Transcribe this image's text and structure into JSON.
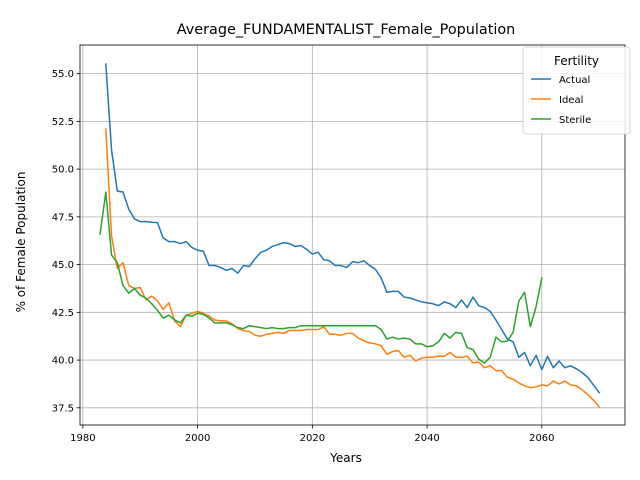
{
  "chart_data": {
    "type": "line",
    "title": "Average_FUNDAMENTALIST_Female_Population",
    "xlabel": "Years",
    "ylabel": "% of Female Population",
    "xlim": [
      1979.5,
      2074.5
    ],
    "ylim": [
      36.6,
      56.5
    ],
    "xticks": [
      1980,
      2000,
      2020,
      2040,
      2060
    ],
    "yticks": [
      37.5,
      40.0,
      42.5,
      45.0,
      47.5,
      50.0,
      52.5,
      55.0
    ],
    "grid": true,
    "legend": {
      "title": "Fertility",
      "placement": "top-right"
    },
    "series": [
      {
        "name": "Actual",
        "color": "#1f77b4",
        "x": [
          1984,
          1985,
          1986,
          1987,
          1988,
          1989,
          1990,
          1991,
          1992,
          1993,
          1994,
          1995,
          1996,
          1997,
          1998,
          1999,
          2000,
          2001,
          2002,
          2003,
          2004,
          2005,
          2006,
          2007,
          2008,
          2009,
          2010,
          2011,
          2012,
          2013,
          2014,
          2015,
          2016,
          2017,
          2018,
          2019,
          2020,
          2021,
          2022,
          2023,
          2024,
          2025,
          2026,
          2027,
          2028,
          2029,
          2030,
          2031,
          2032,
          2033,
          2034,
          2035,
          2036,
          2037,
          2038,
          2039,
          2040,
          2041,
          2042,
          2043,
          2044,
          2045,
          2046,
          2047,
          2048,
          2049,
          2050,
          2051,
          2052,
          2053,
          2054,
          2055,
          2056,
          2057,
          2058,
          2059,
          2060,
          2061,
          2062,
          2063,
          2064,
          2065,
          2066,
          2067,
          2068,
          2069,
          2070
        ],
        "y": [
          55.5,
          51.0,
          48.85,
          48.8,
          47.9,
          47.4,
          47.25,
          47.25,
          47.22,
          47.2,
          46.4,
          46.2,
          46.2,
          46.1,
          46.2,
          45.9,
          45.75,
          45.7,
          44.95,
          44.95,
          44.85,
          44.7,
          44.8,
          44.55,
          44.95,
          44.9,
          45.3,
          45.65,
          45.75,
          45.95,
          46.05,
          46.15,
          46.1,
          45.95,
          46.0,
          45.8,
          45.55,
          45.65,
          45.25,
          45.2,
          44.95,
          44.95,
          44.85,
          45.15,
          45.1,
          45.2,
          44.95,
          44.75,
          44.3,
          43.55,
          43.6,
          43.6,
          43.3,
          43.25,
          43.15,
          43.05,
          43.0,
          42.95,
          42.85,
          43.05,
          42.95,
          42.75,
          43.15,
          42.75,
          43.3,
          42.85,
          42.75,
          42.55,
          42.1,
          41.6,
          41.1,
          40.95,
          40.15,
          40.4,
          39.7,
          40.25,
          39.5,
          40.2,
          39.6,
          39.95,
          39.6,
          39.7,
          39.55,
          39.35,
          39.1,
          38.7,
          38.3
        ]
      },
      {
        "name": "Ideal",
        "color": "#ff7f0e",
        "x": [
          1984,
          1985,
          1986,
          1987,
          1988,
          1989,
          1990,
          1991,
          1992,
          1993,
          1994,
          1995,
          1996,
          1997,
          1998,
          1999,
          2000,
          2001,
          2002,
          2003,
          2004,
          2005,
          2006,
          2007,
          2008,
          2009,
          2010,
          2011,
          2012,
          2013,
          2014,
          2015,
          2016,
          2017,
          2018,
          2019,
          2020,
          2021,
          2022,
          2023,
          2024,
          2025,
          2026,
          2027,
          2028,
          2029,
          2030,
          2031,
          2032,
          2033,
          2034,
          2035,
          2036,
          2037,
          2038,
          2039,
          2040,
          2041,
          2042,
          2043,
          2044,
          2045,
          2046,
          2047,
          2048,
          2049,
          2050,
          2051,
          2052,
          2053,
          2054,
          2055,
          2056,
          2057,
          2058,
          2059,
          2060,
          2061,
          2062,
          2063,
          2064,
          2065,
          2066,
          2067,
          2068,
          2069,
          2070
        ],
        "y": [
          52.1,
          46.5,
          44.8,
          45.1,
          43.9,
          43.75,
          43.8,
          43.15,
          43.35,
          43.1,
          42.65,
          43.0,
          42.05,
          41.75,
          42.35,
          42.45,
          42.55,
          42.45,
          42.3,
          42.1,
          42.05,
          42.05,
          41.9,
          41.65,
          41.55,
          41.5,
          41.3,
          41.25,
          41.35,
          41.4,
          41.45,
          41.4,
          41.55,
          41.55,
          41.55,
          41.6,
          41.6,
          41.6,
          41.75,
          41.35,
          41.35,
          41.3,
          41.4,
          41.4,
          41.15,
          41.0,
          40.9,
          40.85,
          40.75,
          40.3,
          40.45,
          40.5,
          40.15,
          40.25,
          39.95,
          40.1,
          40.15,
          40.15,
          40.2,
          40.2,
          40.4,
          40.15,
          40.15,
          40.2,
          39.85,
          39.9,
          39.6,
          39.7,
          39.45,
          39.45,
          39.1,
          39.0,
          38.8,
          38.65,
          38.55,
          38.6,
          38.7,
          38.65,
          38.9,
          38.75,
          38.9,
          38.7,
          38.65,
          38.45,
          38.2,
          37.9,
          37.55
        ]
      },
      {
        "name": "Sterile",
        "color": "#2ca02c",
        "x": [
          1983,
          1984,
          1985,
          1986,
          1987,
          1988,
          1989,
          1990,
          1991,
          1992,
          1993,
          1994,
          1995,
          1996,
          1997,
          1998,
          1999,
          2000,
          2001,
          2002,
          2003,
          2004,
          2005,
          2006,
          2007,
          2008,
          2009,
          2010,
          2011,
          2012,
          2013,
          2014,
          2015,
          2016,
          2017,
          2018,
          2019,
          2020,
          2021,
          2022,
          2023,
          2024,
          2025,
          2026,
          2027,
          2028,
          2029,
          2030,
          2031,
          2032,
          2033,
          2034,
          2035,
          2036,
          2037,
          2038,
          2039,
          2040,
          2041,
          2042,
          2043,
          2044,
          2045,
          2046,
          2047,
          2048,
          2049,
          2050,
          2051,
          2052,
          2053,
          2054,
          2055,
          2056,
          2057,
          2058,
          2059,
          2060
        ],
        "y": [
          46.6,
          48.8,
          45.5,
          45.1,
          43.9,
          43.5,
          43.75,
          43.4,
          43.25,
          42.95,
          42.6,
          42.2,
          42.35,
          42.1,
          41.95,
          42.35,
          42.3,
          42.45,
          42.4,
          42.2,
          41.95,
          41.95,
          41.95,
          41.85,
          41.7,
          41.65,
          41.8,
          41.75,
          41.7,
          41.65,
          41.7,
          41.65,
          41.65,
          41.7,
          41.7,
          41.8,
          41.8,
          41.8,
          41.8,
          41.8,
          41.8,
          41.8,
          41.8,
          41.8,
          41.8,
          41.8,
          41.8,
          41.8,
          41.8,
          41.6,
          41.1,
          41.2,
          41.1,
          41.15,
          41.1,
          40.85,
          40.85,
          40.7,
          40.75,
          40.95,
          41.4,
          41.15,
          41.45,
          41.4,
          40.65,
          40.55,
          40.05,
          39.85,
          40.15,
          41.2,
          40.95,
          41.0,
          41.45,
          43.1,
          43.55,
          41.75,
          42.8,
          44.3
        ]
      }
    ]
  }
}
